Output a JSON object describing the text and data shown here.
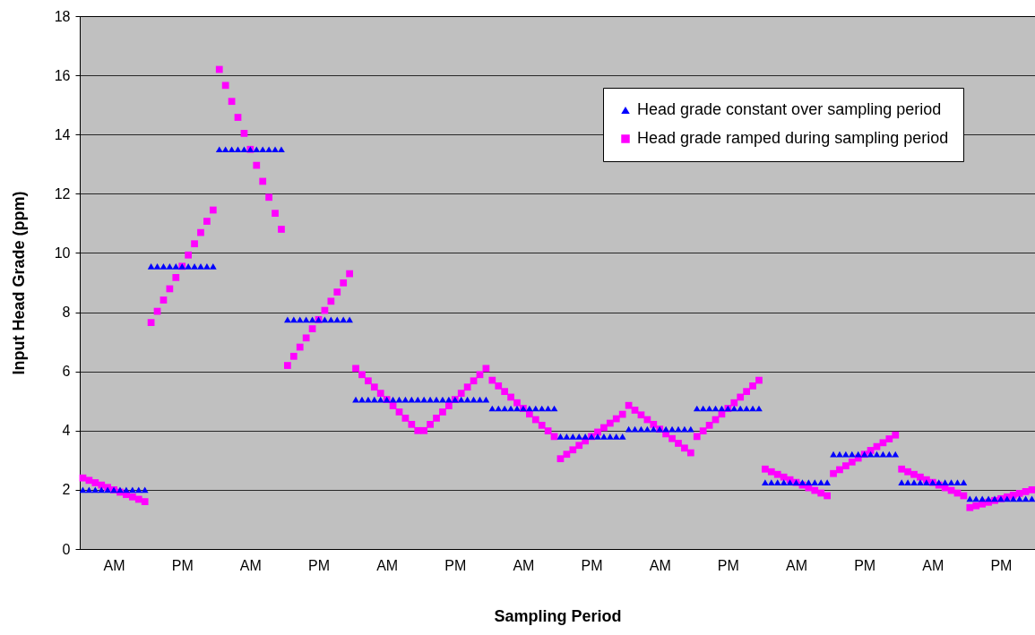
{
  "chart_data": {
    "type": "scatter",
    "xlabel": "Sampling Period",
    "ylabel": "Input Head Grade (ppm)",
    "grid": "y",
    "legend": "top right",
    "ylim": [
      0,
      18
    ],
    "yticks": [
      0,
      2,
      4,
      6,
      8,
      10,
      12,
      14,
      16,
      18
    ],
    "categories": [
      null,
      null,
      null,
      null,
      null,
      "AM",
      null,
      null,
      null,
      null,
      null,
      null,
      null,
      null,
      null,
      null,
      "PM",
      null,
      null,
      null,
      null,
      null,
      null,
      null,
      null,
      null,
      null,
      "AM",
      null,
      null,
      null,
      null,
      null,
      null,
      null,
      null,
      null,
      null,
      "PM",
      null,
      null,
      null,
      null,
      null,
      null,
      null,
      null,
      null,
      null,
      "AM",
      null,
      null,
      null,
      null,
      null,
      null,
      null,
      null,
      null,
      null,
      "PM",
      null,
      null,
      null,
      null,
      null,
      null,
      null,
      null,
      null,
      null,
      "AM",
      null,
      null,
      null,
      null,
      null,
      null,
      null,
      null,
      null,
      null,
      "PM",
      null,
      null,
      null,
      null,
      null,
      null,
      null,
      null,
      null,
      null,
      "AM",
      null,
      null,
      null,
      null,
      null,
      null,
      null,
      null,
      null,
      null,
      "PM",
      null,
      null,
      null,
      null,
      null,
      null,
      null,
      null,
      null,
      null,
      "AM",
      null,
      null,
      null,
      null,
      null,
      null,
      null,
      null,
      null,
      null,
      "PM",
      null,
      null,
      null,
      null,
      null,
      null,
      null,
      null,
      null,
      null,
      "AM",
      null,
      null,
      null,
      null,
      null,
      null,
      null,
      null,
      null,
      null,
      "PM",
      null,
      null,
      null,
      null,
      null
    ],
    "series": [
      {
        "name": "Head grade constant over sampling period",
        "color": "#0000ff",
        "marker": "triangle",
        "values": [
          2,
          2,
          2,
          2,
          2,
          2,
          2,
          2,
          2,
          2,
          2,
          9.55,
          9.55,
          9.55,
          9.55,
          9.55,
          9.55,
          9.55,
          9.55,
          9.55,
          9.55,
          9.55,
          13.5,
          13.5,
          13.5,
          13.5,
          13.5,
          13.5,
          13.5,
          13.5,
          13.5,
          13.5,
          13.5,
          7.75,
          7.75,
          7.75,
          7.75,
          7.75,
          7.75,
          7.75,
          7.75,
          7.75,
          7.75,
          7.75,
          5.05,
          5.05,
          5.05,
          5.05,
          5.05,
          5.05,
          5.05,
          5.05,
          5.05,
          5.05,
          5.05,
          5.05,
          5.05,
          5.05,
          5.05,
          5.05,
          5.05,
          5.05,
          5.05,
          5.05,
          5.05,
          5.05,
          4.75,
          4.75,
          4.75,
          4.75,
          4.75,
          4.75,
          4.75,
          4.75,
          4.75,
          4.75,
          4.75,
          3.8,
          3.8,
          3.8,
          3.8,
          3.8,
          3.8,
          3.8,
          3.8,
          3.8,
          3.8,
          3.8,
          4.05,
          4.05,
          4.05,
          4.05,
          4.05,
          4.05,
          4.05,
          4.05,
          4.05,
          4.05,
          4.05,
          4.75,
          4.75,
          4.75,
          4.75,
          4.75,
          4.75,
          4.75,
          4.75,
          4.75,
          4.75,
          4.75,
          2.25,
          2.25,
          2.25,
          2.25,
          2.25,
          2.25,
          2.25,
          2.25,
          2.25,
          2.25,
          2.25,
          3.2,
          3.2,
          3.2,
          3.2,
          3.2,
          3.2,
          3.2,
          3.2,
          3.2,
          3.2,
          3.2,
          2.25,
          2.25,
          2.25,
          2.25,
          2.25,
          2.25,
          2.25,
          2.25,
          2.25,
          2.25,
          2.25,
          1.7,
          1.7,
          1.7,
          1.7,
          1.7,
          1.7,
          1.7,
          1.7,
          1.7,
          1.7,
          1.7
        ]
      },
      {
        "name": "Head grade ramped during sampling period",
        "color": "#ff00ff",
        "marker": "square",
        "values": [
          2.4,
          2.32,
          2.24,
          2.16,
          2.08,
          2.0,
          1.92,
          1.84,
          1.76,
          1.68,
          1.6,
          7.65,
          8.03,
          8.41,
          8.79,
          9.17,
          9.55,
          9.93,
          10.31,
          10.69,
          11.07,
          11.45,
          16.2,
          15.66,
          15.12,
          14.58,
          14.04,
          13.5,
          12.96,
          12.42,
          11.88,
          11.34,
          10.8,
          6.2,
          6.51,
          6.82,
          7.13,
          7.44,
          7.75,
          8.06,
          8.37,
          8.68,
          8.99,
          9.3,
          6.1,
          5.89,
          5.68,
          5.47,
          5.26,
          5.05,
          4.84,
          4.63,
          4.42,
          4.21,
          4.0,
          4.0,
          4.21,
          4.42,
          4.63,
          4.84,
          5.05,
          5.26,
          5.47,
          5.68,
          5.89,
          6.1,
          5.7,
          5.51,
          5.32,
          5.13,
          4.94,
          4.75,
          4.56,
          4.37,
          4.18,
          3.99,
          3.8,
          3.05,
          3.2,
          3.35,
          3.5,
          3.65,
          3.8,
          3.95,
          4.1,
          4.25,
          4.4,
          4.55,
          4.85,
          4.69,
          4.53,
          4.37,
          4.21,
          4.05,
          3.89,
          3.73,
          3.57,
          3.41,
          3.25,
          3.8,
          3.99,
          4.18,
          4.37,
          4.56,
          4.75,
          4.94,
          5.13,
          5.32,
          5.51,
          5.7,
          2.7,
          2.61,
          2.52,
          2.43,
          2.34,
          2.25,
          2.16,
          2.07,
          1.98,
          1.89,
          1.8,
          2.55,
          2.68,
          2.81,
          2.94,
          3.07,
          3.2,
          3.33,
          3.46,
          3.59,
          3.72,
          3.85,
          2.7,
          2.61,
          2.52,
          2.43,
          2.34,
          2.25,
          2.16,
          2.07,
          1.98,
          1.89,
          1.8,
          1.4,
          1.46,
          1.52,
          1.58,
          1.64,
          1.7,
          1.76,
          1.82,
          1.88,
          1.94,
          2.0
        ]
      }
    ]
  }
}
